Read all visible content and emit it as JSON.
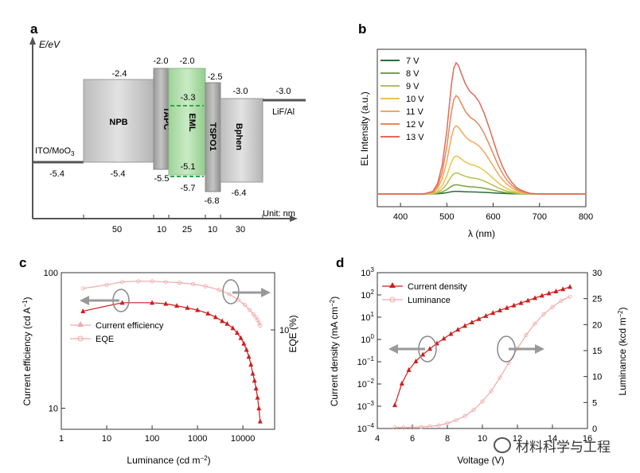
{
  "figure": {
    "panel_labels": [
      "a",
      "b",
      "c",
      "d"
    ],
    "watermark": "材料科学与工程"
  },
  "chart_data": [
    {
      "id": "a",
      "type": "diagram",
      "ylabel": "E/eV",
      "unit_label": "Unit: nm",
      "layers": [
        {
          "name": "ITO/MoO3",
          "label": "ITO/MoO",
          "sub": "3",
          "level": "-5.4"
        },
        {
          "name": "NPB",
          "top": "-2.4",
          "bottom": "-5.4",
          "thickness": "50"
        },
        {
          "name": "TAPC",
          "top": "-2.0",
          "bottom": "-5.5",
          "thickness": "10"
        },
        {
          "name": "EML",
          "top": "-2.0",
          "bottom": "-5.7",
          "dopant_top": "-3.3",
          "dopant_bottom": "-5.1",
          "thickness": "25"
        },
        {
          "name": "TSPO1",
          "top": "-2.5",
          "bottom": "-6.8",
          "thickness": "10"
        },
        {
          "name": "Bphen",
          "top": "-3.0",
          "bottom": "-6.4",
          "thickness": "30"
        },
        {
          "name": "LiF/Al",
          "level": "-3.0"
        }
      ]
    },
    {
      "id": "b",
      "type": "line",
      "xlabel": "λ (nm)",
      "ylabel": "EL Intensity (a.u.)",
      "xlim": [
        350,
        800
      ],
      "xticks": [
        "400",
        "500",
        "600",
        "700",
        "800"
      ],
      "x": [
        350,
        450,
        470,
        480,
        490,
        500,
        505,
        510,
        515,
        520,
        525,
        530,
        540,
        550,
        560,
        570,
        580,
        590,
        600,
        610,
        620,
        630,
        640,
        650,
        660,
        670,
        680,
        700,
        750,
        800
      ],
      "shape": [
        0,
        0,
        0.02,
        0.08,
        0.22,
        0.48,
        0.66,
        0.84,
        0.96,
        1.0,
        0.98,
        0.93,
        0.84,
        0.78,
        0.75,
        0.7,
        0.62,
        0.52,
        0.41,
        0.3,
        0.21,
        0.14,
        0.09,
        0.05,
        0.03,
        0.015,
        0.005,
        0,
        0,
        0
      ],
      "series": [
        {
          "name": "7 V",
          "color": "#2e6b3a",
          "peak": 0.02
        },
        {
          "name": "8 V",
          "color": "#77a340",
          "peak": 0.07
        },
        {
          "name": "9 V",
          "color": "#b3c34a",
          "peak": 0.16
        },
        {
          "name": "10 V",
          "color": "#e8c54a",
          "peak": 0.29
        },
        {
          "name": "11 V",
          "color": "#f0a85a",
          "peak": 0.52
        },
        {
          "name": "12 V",
          "color": "#e48a5a",
          "peak": 0.75
        },
        {
          "name": "13 V",
          "color": "#e06a5a",
          "peak": 1.0
        }
      ]
    },
    {
      "id": "c",
      "type": "line",
      "xlabel": "Luminance (cd m",
      "xlabel_sup": "−2",
      "xlabel_end": ")",
      "ylabel_left": "Current efficiency (cd A",
      "ylabel_left_sup": "−1",
      "ylabel_left_end": ")",
      "ylabel_right": "EQE (%)",
      "xlim": [
        1,
        50000
      ],
      "ylim_left": [
        7,
        100
      ],
      "xticks": [
        "1",
        "10",
        "100",
        "1000",
        "10000"
      ],
      "yticks_left": [
        "10",
        "100"
      ],
      "ytick_right": "10",
      "series": [
        {
          "name": "Current efficiency",
          "axis": "left",
          "color": "#cc1f1f",
          "x": [
            3,
            22,
            100,
            200,
            350,
            600,
            1000,
            1700,
            2500,
            3500,
            4500,
            6000,
            7500,
            9000,
            10500,
            12000,
            13500,
            15000,
            16500,
            18000,
            19500,
            21000,
            22500,
            24000
          ],
          "y": [
            52,
            60,
            60,
            59,
            57,
            55,
            53,
            50,
            47,
            44,
            42,
            39,
            36,
            33,
            30,
            27,
            24,
            21,
            18,
            16,
            14,
            12,
            10,
            8
          ]
        },
        {
          "name": "EQE",
          "axis": "right",
          "color": "#f0aaaa",
          "x": [
            3,
            10,
            22,
            50,
            100,
            200,
            400,
            800,
            1500,
            3000,
            5000,
            8000,
            11000,
            14000,
            17000,
            19000,
            21000,
            23000,
            24000
          ],
          "y": [
            78,
            83,
            87,
            88,
            88,
            87,
            86,
            84,
            81,
            76,
            70,
            62,
            55,
            48,
            42,
            38,
            34,
            29,
            26
          ]
        }
      ]
    },
    {
      "id": "d",
      "type": "line",
      "xlabel": "Voltage (V)",
      "ylabel_left": "Current density (mA cm",
      "ylabel_left_sup": "−2",
      "ylabel_left_end": ")",
      "ylabel_right": "Luminance (kcd m",
      "ylabel_right_sup": "−2",
      "ylabel_right_end": ")",
      "xlim": [
        4,
        16
      ],
      "xticks": [
        "4",
        "6",
        "8",
        "10",
        "12",
        "14",
        "16"
      ],
      "ylim_left_log10": [
        -4,
        3
      ],
      "yticks_left": [
        {
          "b": "10",
          "e": "−4"
        },
        {
          "b": "10",
          "e": "−3"
        },
        {
          "b": "10",
          "e": "−2"
        },
        {
          "b": "10",
          "e": "−1"
        },
        {
          "b": "10",
          "e": "0"
        },
        {
          "b": "10",
          "e": "1"
        },
        {
          "b": "10",
          "e": "2"
        },
        {
          "b": "10",
          "e": "3"
        }
      ],
      "ylim_right": [
        0,
        30
      ],
      "yticks_right": [
        "0",
        "5",
        "10",
        "15",
        "20",
        "25",
        "30"
      ],
      "series": [
        {
          "name": "Current density",
          "axis": "left",
          "color": "#cc1f1f",
          "x": [
            5.0,
            5.4,
            5.8,
            6.2,
            6.6,
            7.0,
            7.4,
            7.8,
            8.2,
            8.6,
            9.0,
            9.4,
            9.8,
            10.2,
            10.6,
            11.0,
            11.4,
            11.8,
            12.2,
            12.6,
            13.0,
            13.4,
            13.8,
            14.2,
            14.6,
            15.0
          ],
          "log10y": [
            -2.95,
            -1.98,
            -1.37,
            -0.98,
            -0.68,
            -0.42,
            -0.18,
            0.04,
            0.25,
            0.44,
            0.61,
            0.77,
            0.92,
            1.06,
            1.19,
            1.31,
            1.42,
            1.53,
            1.64,
            1.75,
            1.86,
            1.97,
            2.07,
            2.16,
            2.26,
            2.36
          ]
        },
        {
          "name": "Luminance",
          "axis": "right",
          "color": "#f0aaaa",
          "x": [
            5,
            5.5,
            6,
            6.5,
            7,
            7.5,
            8,
            8.5,
            9,
            9.5,
            10,
            10.5,
            11,
            11.5,
            12,
            12.5,
            13,
            13.5,
            14,
            14.5,
            15
          ],
          "y": [
            0.2,
            0.2,
            0.2,
            0.3,
            0.4,
            0.6,
            1.0,
            1.6,
            2.4,
            3.6,
            5.2,
            7.2,
            9.8,
            12.6,
            15.4,
            18.0,
            20.2,
            22.0,
            23.4,
            24.6,
            25.4
          ]
        }
      ]
    }
  ]
}
